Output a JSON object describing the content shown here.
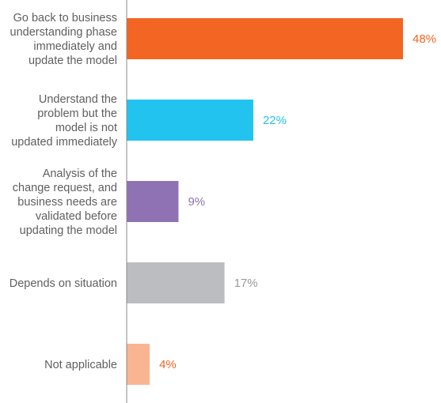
{
  "chart_data": {
    "type": "bar",
    "orientation": "horizontal",
    "title": "",
    "xlabel": "",
    "ylabel": "",
    "xlim": [
      0,
      50
    ],
    "grid": false,
    "legend": "none",
    "categories": [
      "Go back to business understanding phase immediately and update the model",
      "Understand the problem but the model is not updated immediately",
      "Analysis of the change request, and business needs are validated before updating the model",
      "Depends on situation",
      "Not applicable"
    ],
    "category_lines": [
      [
        "Go back to business",
        "understanding phase",
        "immediately and",
        "update the model"
      ],
      [
        "Understand the",
        "problem but the",
        "model is not",
        "updated immediately"
      ],
      [
        "Analysis of the",
        "change request, and",
        "business needs are",
        "validated before",
        "updating the model"
      ],
      [
        "Depends on situation"
      ],
      [
        "Not applicable"
      ]
    ],
    "values": [
      48,
      22,
      9,
      17,
      4
    ],
    "value_labels": [
      "48%",
      "22%",
      "9%",
      "17%",
      "4%"
    ],
    "colors": [
      "#f26522",
      "#22c3ef",
      "#8e72b3",
      "#bcbdc0",
      "#f9b592"
    ],
    "label_colors": [
      "#f26522",
      "#22c3ef",
      "#8e72b3",
      "#9a9a9a",
      "#f26522"
    ],
    "axis_color": "#8a8a8a",
    "label_color": "#5f5f5f"
  }
}
